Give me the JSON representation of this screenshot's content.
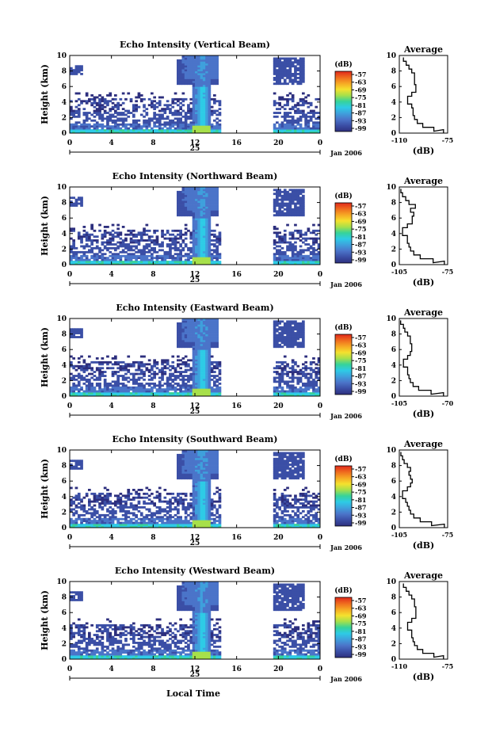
{
  "figure": {
    "bottom_xlabel": "Local Time",
    "date_label": "Jan 2006",
    "day_label": "25",
    "height_ylabel": "Height (km)",
    "colorbar_unit": "(dB)",
    "avg_title": "Average",
    "avg_xlabel": "(dB)"
  },
  "colors": {
    "colormap": [
      "#2d2f7e",
      "#3b4fa6",
      "#4b74c9",
      "#3fa0dc",
      "#2ecbe6",
      "#36d39a",
      "#a7e04a",
      "#f5e12e",
      "#f6a824",
      "#ef6a1e",
      "#e0281b"
    ],
    "frame": "#000000"
  },
  "chart_data": [
    {
      "type": "heatmap",
      "title": "Echo Intensity (Vertical Beam)",
      "xlabel": "",
      "ylabel": "Height (km)",
      "xlim": [
        0,
        24
      ],
      "ylim": [
        0,
        10
      ],
      "x_ticks": [
        "0",
        "4",
        "8",
        "12",
        "16",
        "20",
        "0"
      ],
      "y_ticks": [
        "0",
        "2",
        "4",
        "6",
        "8",
        "10"
      ],
      "data_gap_hours": [
        14.5,
        19.5
      ],
      "colorbar": {
        "label": "(dB)",
        "ticks": [
          "-57",
          "-63",
          "-69",
          "-75",
          "-81",
          "-87",
          "-93",
          "-99"
        ]
      },
      "average_profile": {
        "title": "Average",
        "xlabel": "(dB)",
        "xlim": [
          -110,
          -75
        ],
        "x_ticks": [
          "-110",
          "-75"
        ],
        "y_ticks": [
          "0",
          "2",
          "4",
          "6",
          "8",
          "10"
        ],
        "height_km": [
          0.2,
          0.5,
          1,
          1.5,
          2,
          2.5,
          3,
          3.5,
          4,
          4.5,
          5,
          5.5,
          6,
          6.5,
          7,
          7.5,
          8,
          8.5,
          9,
          9.5
        ],
        "dB": [
          -78,
          -85,
          -93,
          -97,
          -99,
          -100,
          -100,
          -101,
          -104,
          -104,
          -101,
          -98,
          -98,
          -99,
          -99,
          -99,
          -101,
          -103,
          -105,
          -107
        ]
      }
    },
    {
      "type": "heatmap",
      "title": "Echo Intensity (Northward Beam)",
      "xlabel": "",
      "ylabel": "Height (km)",
      "xlim": [
        0,
        24
      ],
      "ylim": [
        0,
        10
      ],
      "x_ticks": [
        "0",
        "4",
        "8",
        "12",
        "16",
        "20",
        "0"
      ],
      "y_ticks": [
        "0",
        "2",
        "4",
        "6",
        "8",
        "10"
      ],
      "data_gap_hours": [
        14.5,
        19.5
      ],
      "colorbar": {
        "label": "(dB)",
        "ticks": [
          "-57",
          "-63",
          "-69",
          "-75",
          "-81",
          "-87",
          "-93",
          "-99"
        ]
      },
      "average_profile": {
        "title": "Average",
        "xlabel": "(dB)",
        "xlim": [
          -105,
          -75
        ],
        "x_ticks": [
          "-105",
          "-75"
        ],
        "y_ticks": [
          "0",
          "2",
          "4",
          "6",
          "8",
          "10"
        ],
        "height_km": [
          0.2,
          0.5,
          1,
          1.5,
          2,
          2.5,
          3,
          3.5,
          4,
          4.5,
          5,
          5.5,
          6,
          6.5,
          7,
          7.5,
          8,
          8.5,
          9,
          9.5
        ],
        "dB": [
          -77,
          -84,
          -92,
          -96,
          -98,
          -99,
          -100,
          -100,
          -103,
          -103,
          -100,
          -97,
          -97,
          -96,
          -98,
          -95,
          -99,
          -101,
          -103,
          -104
        ]
      }
    },
    {
      "type": "heatmap",
      "title": "Echo Intensity (Eastward Beam)",
      "xlabel": "",
      "ylabel": "Height (km)",
      "xlim": [
        0,
        24
      ],
      "ylim": [
        0,
        10
      ],
      "x_ticks": [
        "0",
        "4",
        "8",
        "12",
        "16",
        "20",
        "0"
      ],
      "y_ticks": [
        "0",
        "2",
        "4",
        "6",
        "8",
        "10"
      ],
      "data_gap_hours": [
        14.5,
        19.5
      ],
      "colorbar": {
        "label": "(dB)",
        "ticks": [
          "-57",
          "-63",
          "-69",
          "-75",
          "-81",
          "-87",
          "-93",
          "-99"
        ]
      },
      "average_profile": {
        "title": "Average",
        "xlabel": "(dB)",
        "xlim": [
          -105,
          -70
        ],
        "x_ticks": [
          "-105",
          "-70"
        ],
        "y_ticks": [
          "0",
          "2",
          "4",
          "6",
          "8",
          "10"
        ],
        "height_km": [
          0.2,
          0.5,
          1,
          1.5,
          2,
          2.5,
          3,
          3.5,
          4,
          4.5,
          5,
          5.5,
          6,
          6.5,
          7,
          7.5,
          8,
          8.5,
          9,
          9.5
        ],
        "dB": [
          -73,
          -82,
          -91,
          -95,
          -97,
          -98,
          -99,
          -99,
          -102,
          -102,
          -99,
          -97,
          -96,
          -96,
          -97,
          -97,
          -99,
          -101,
          -102,
          -104
        ]
      }
    },
    {
      "type": "heatmap",
      "title": "Echo Intensity (Southward Beam)",
      "xlabel": "",
      "ylabel": "Height (km)",
      "xlim": [
        0,
        24
      ],
      "ylim": [
        0,
        10
      ],
      "x_ticks": [
        "0",
        "4",
        "8",
        "12",
        "16",
        "20",
        "0"
      ],
      "y_ticks": [
        "0",
        "2",
        "4",
        "6",
        "8",
        "10"
      ],
      "data_gap_hours": [
        14.5,
        19.5
      ],
      "colorbar": {
        "label": "(dB)",
        "ticks": [
          "-57",
          "-63",
          "-69",
          "-75",
          "-81",
          "-87",
          "-93",
          "-99"
        ]
      },
      "average_profile": {
        "title": "Average",
        "xlabel": "(dB)",
        "xlim": [
          -105,
          -75
        ],
        "x_ticks": [
          "-105",
          "-75"
        ],
        "y_ticks": [
          "0",
          "2",
          "4",
          "6",
          "8",
          "10"
        ],
        "height_km": [
          0.2,
          0.5,
          1,
          1.5,
          2,
          2.5,
          3,
          3.5,
          4,
          4.5,
          5,
          5.5,
          6,
          6.5,
          7,
          7.5,
          8,
          8.5,
          9,
          9.5
        ],
        "dB": [
          -77,
          -85,
          -92,
          -96,
          -98,
          -99,
          -100,
          -101,
          -103,
          -103,
          -100,
          -98,
          -97,
          -98,
          -99,
          -98,
          -100,
          -102,
          -103,
          -104
        ]
      }
    },
    {
      "type": "heatmap",
      "title": "Echo Intensity (Westward Beam)",
      "xlabel": "Local Time",
      "ylabel": "Height (km)",
      "xlim": [
        0,
        24
      ],
      "ylim": [
        0,
        10
      ],
      "x_ticks": [
        "0",
        "4",
        "8",
        "12",
        "16",
        "20",
        "0"
      ],
      "y_ticks": [
        "0",
        "2",
        "4",
        "6",
        "8",
        "10"
      ],
      "data_gap_hours": [
        14.5,
        19.5
      ],
      "colorbar": {
        "label": "(dB)",
        "ticks": [
          "-57",
          "-63",
          "-69",
          "-75",
          "-81",
          "-87",
          "-93",
          "-99"
        ]
      },
      "average_profile": {
        "title": "Average",
        "xlabel": "(dB)",
        "xlim": [
          -110,
          -75
        ],
        "x_ticks": [
          "-110",
          "-75"
        ],
        "y_ticks": [
          "0",
          "2",
          "4",
          "6",
          "8",
          "10"
        ],
        "height_km": [
          0.2,
          0.5,
          1,
          1.5,
          2,
          2.5,
          3,
          3.5,
          4,
          4.5,
          5,
          5.5,
          6,
          6.5,
          7,
          7.5,
          8,
          8.5,
          9,
          9.5
        ],
        "dB": [
          -78,
          -85,
          -93,
          -97,
          -99,
          -100,
          -101,
          -101,
          -104,
          -104,
          -101,
          -98,
          -98,
          -98,
          -99,
          -99,
          -101,
          -103,
          -105,
          -107
        ]
      }
    }
  ]
}
